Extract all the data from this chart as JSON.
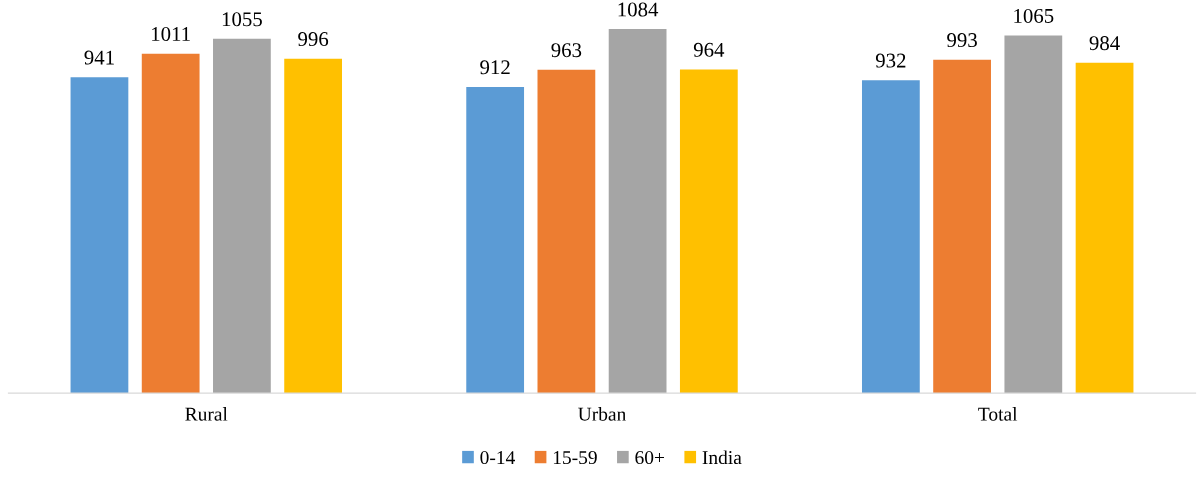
{
  "chart_data": {
    "type": "bar",
    "categories": [
      "Rural",
      "Urban",
      "Total"
    ],
    "series": [
      {
        "name": "0-14",
        "color": "#5b9bd5",
        "values": [
          941,
          912,
          932
        ]
      },
      {
        "name": "15-59",
        "color": "#ed7d31",
        "values": [
          1011,
          963,
          993
        ]
      },
      {
        "name": "60+",
        "color": "#a5a5a5",
        "values": [
          1055,
          1084,
          1065
        ]
      },
      {
        "name": "India",
        "color": "#ffc000",
        "values": [
          996,
          964,
          984
        ]
      }
    ],
    "tick_labels": "x",
    "data_labels": true,
    "grid": false,
    "legend": "bottom"
  }
}
